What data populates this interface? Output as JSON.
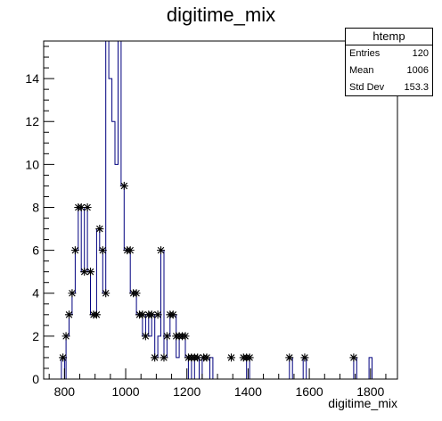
{
  "title": "digitime_mix",
  "stats_box": {
    "name": "htemp",
    "rows": [
      {
        "label": "Entries",
        "value": "120"
      },
      {
        "label": "Mean",
        "value": "1006"
      },
      {
        "label": "Std Dev",
        "value": "153.3"
      }
    ]
  },
  "colors": {
    "histogram": "#00007f",
    "markers": "#000000",
    "axes": "#000000"
  },
  "chart_data": {
    "type": "line",
    "title": "digitime_mix",
    "xlabel": "digitime_mix",
    "ylabel": "",
    "xlim": [
      732,
      1888
    ],
    "ylim": [
      0,
      15.75
    ],
    "x_ticks": [
      800,
      1000,
      1200,
      1400,
      1600,
      1800
    ],
    "y_ticks": [
      0,
      2,
      4,
      6,
      8,
      10,
      12,
      14
    ],
    "grid": false,
    "histogram_step": {
      "bin_width": 10,
      "points": [
        [
          790,
          0
        ],
        [
          790,
          1
        ],
        [
          800,
          1
        ],
        [
          800,
          0
        ],
        [
          805,
          0
        ],
        [
          805,
          2
        ],
        [
          815,
          2
        ],
        [
          815,
          3
        ],
        [
          825,
          3
        ],
        [
          825,
          4
        ],
        [
          835,
          4
        ],
        [
          835,
          6
        ],
        [
          845,
          6
        ],
        [
          845,
          8
        ],
        [
          855,
          8
        ],
        [
          855,
          5
        ],
        [
          865,
          5
        ],
        [
          865,
          8
        ],
        [
          875,
          8
        ],
        [
          875,
          5
        ],
        [
          885,
          5
        ],
        [
          885,
          3
        ],
        [
          895,
          3
        ],
        [
          895,
          3
        ],
        [
          905,
          3
        ],
        [
          905,
          7
        ],
        [
          915,
          7
        ],
        [
          915,
          6
        ],
        [
          925,
          6
        ],
        [
          925,
          4
        ],
        [
          935,
          4
        ],
        [
          935,
          16
        ],
        [
          945,
          16
        ],
        [
          945,
          14
        ],
        [
          955,
          14
        ],
        [
          955,
          12
        ],
        [
          965,
          12
        ],
        [
          965,
          10
        ],
        [
          975,
          10
        ],
        [
          975,
          16
        ],
        [
          985,
          16
        ],
        [
          985,
          9
        ],
        [
          995,
          9
        ],
        [
          995,
          6
        ],
        [
          1005,
          6
        ],
        [
          1005,
          6
        ],
        [
          1015,
          6
        ],
        [
          1015,
          4
        ],
        [
          1025,
          4
        ],
        [
          1025,
          4
        ],
        [
          1035,
          4
        ],
        [
          1035,
          3
        ],
        [
          1045,
          3
        ],
        [
          1045,
          3
        ],
        [
          1055,
          3
        ],
        [
          1055,
          2
        ],
        [
          1065,
          2
        ],
        [
          1065,
          3
        ],
        [
          1075,
          3
        ],
        [
          1075,
          2
        ],
        [
          1085,
          2
        ],
        [
          1085,
          3
        ],
        [
          1095,
          3
        ],
        [
          1095,
          1
        ],
        [
          1105,
          1
        ],
        [
          1105,
          2
        ],
        [
          1115,
          2
        ],
        [
          1115,
          6
        ],
        [
          1125,
          6
        ],
        [
          1125,
          1
        ],
        [
          1135,
          1
        ],
        [
          1135,
          2
        ],
        [
          1145,
          2
        ],
        [
          1145,
          3
        ],
        [
          1155,
          3
        ],
        [
          1155,
          3
        ],
        [
          1165,
          3
        ],
        [
          1165,
          1
        ],
        [
          1175,
          1
        ],
        [
          1175,
          2
        ],
        [
          1185,
          2
        ],
        [
          1185,
          2
        ],
        [
          1195,
          2
        ],
        [
          1195,
          1
        ],
        [
          1205,
          1
        ],
        [
          1205,
          0
        ],
        [
          1215,
          0
        ],
        [
          1215,
          1
        ],
        [
          1225,
          1
        ],
        [
          1225,
          0
        ],
        [
          1240,
          0
        ],
        [
          1240,
          1
        ],
        [
          1250,
          1
        ],
        [
          1250,
          0
        ],
        [
          1275,
          0
        ],
        [
          1275,
          1
        ],
        [
          1285,
          1
        ],
        [
          1285,
          0
        ],
        [
          1395,
          0
        ],
        [
          1395,
          1
        ],
        [
          1405,
          1
        ],
        [
          1405,
          0
        ],
        [
          1535,
          0
        ],
        [
          1535,
          1
        ],
        [
          1545,
          1
        ],
        [
          1545,
          0
        ],
        [
          1580,
          0
        ],
        [
          1580,
          1
        ],
        [
          1590,
          1
        ],
        [
          1590,
          0
        ],
        [
          1745,
          0
        ],
        [
          1745,
          1
        ],
        [
          1755,
          1
        ],
        [
          1755,
          0
        ],
        [
          1795,
          0
        ],
        [
          1795,
          1
        ],
        [
          1805,
          1
        ],
        [
          1805,
          0
        ]
      ]
    },
    "markers": {
      "x": [
        795,
        805,
        815,
        825,
        835,
        845,
        855,
        865,
        875,
        885,
        895,
        905,
        915,
        925,
        935,
        995,
        1005,
        1015,
        1025,
        1035,
        1045,
        1055,
        1065,
        1075,
        1085,
        1095,
        1105,
        1115,
        1125,
        1135,
        1145,
        1155,
        1165,
        1175,
        1185,
        1195,
        1205,
        1215,
        1225,
        1235,
        1245,
        1255,
        1265,
        1275,
        1285,
        1295,
        1305,
        1315,
        1325,
        1335,
        1345,
        1355,
        1365,
        1375,
        1385,
        1395,
        1405,
        1415,
        1425,
        1435,
        1445,
        1455,
        1465,
        1475,
        1485,
        1495,
        1505,
        1515,
        1525,
        1535,
        1545,
        1555,
        1565,
        1575,
        1585,
        1595,
        1605,
        1615,
        1625,
        1635,
        1645,
        1655,
        1665,
        1675,
        1685,
        1695,
        1705,
        1715,
        1725,
        1735,
        1745,
        1755
      ],
      "y": [
        1,
        2,
        3,
        4,
        6,
        8,
        8,
        5,
        8,
        5,
        3,
        3,
        7,
        6,
        4,
        9,
        6,
        6,
        4,
        4,
        3,
        3,
        2,
        3,
        3,
        1,
        3,
        6,
        1,
        2,
        3,
        3,
        2,
        2,
        2,
        2,
        1,
        1,
        1,
        1,
        0,
        1,
        1,
        0,
        0,
        0,
        0,
        0,
        0,
        0,
        1,
        0,
        0,
        0,
        1,
        1,
        1,
        0,
        0,
        0,
        0,
        0,
        0,
        0,
        0,
        0,
        0,
        0,
        0,
        1,
        0,
        0,
        0,
        0,
        1,
        0,
        0,
        0,
        0,
        0,
        0,
        0,
        0,
        0,
        0,
        0,
        0,
        0,
        0,
        0,
        1,
        0
      ]
    }
  }
}
